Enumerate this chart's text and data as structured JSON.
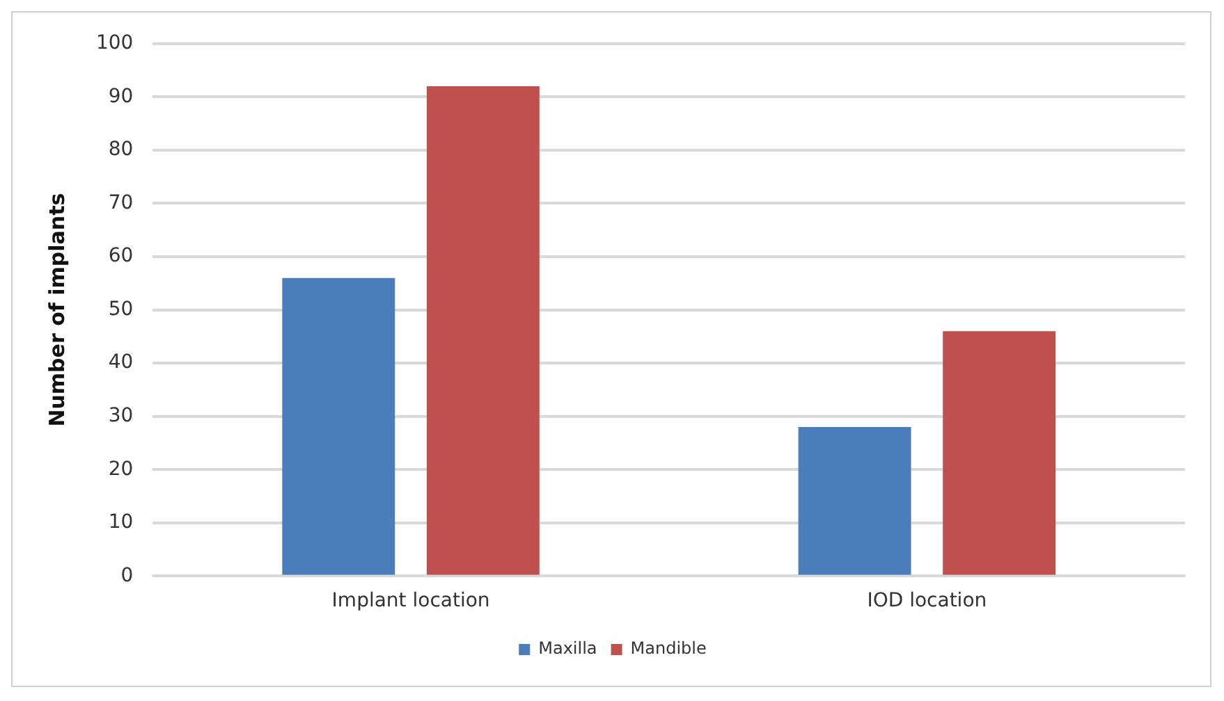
{
  "chart_data": {
    "type": "bar",
    "ylabel": "Number of implants",
    "categories": [
      "Implant location",
      "IOD location"
    ],
    "series": [
      {
        "name": "Maxilla",
        "color": "#4a7ebb",
        "values": [
          56,
          28
        ]
      },
      {
        "name": "Mandible",
        "color": "#c0504d",
        "values": [
          92,
          46
        ]
      }
    ],
    "ylim": [
      0,
      100
    ],
    "yticks": [
      0,
      10,
      20,
      30,
      40,
      50,
      60,
      70,
      80,
      90,
      100
    ],
    "grid": "y",
    "legend": "bottom"
  }
}
